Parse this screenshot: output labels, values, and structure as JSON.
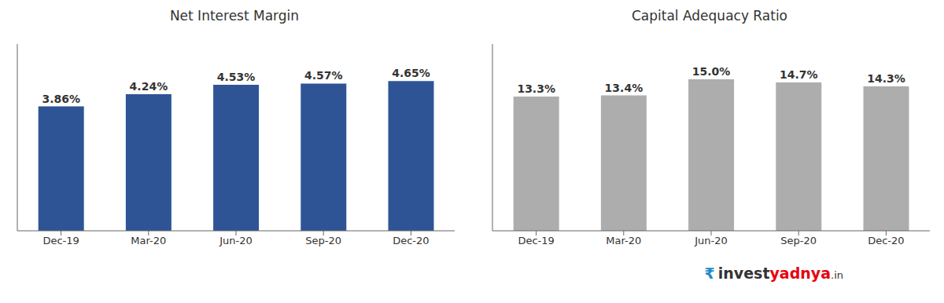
{
  "chart_data": [
    {
      "type": "bar",
      "title": "Net Interest Margin",
      "categories": [
        "Dec-19",
        "Mar-20",
        "Jun-20",
        "Sep-20",
        "Dec-20"
      ],
      "values": [
        3.86,
        4.24,
        4.53,
        4.57,
        4.65
      ],
      "value_labels": [
        "3.86%",
        "4.24%",
        "4.53%",
        "4.57%",
        "4.65%"
      ],
      "color": "#2F5496",
      "ylim": [
        0,
        5.8
      ],
      "yticks": [],
      "data_labels": true,
      "tick_labels": "x",
      "grid": false
    },
    {
      "type": "bar",
      "title": "Capital Adequacy Ratio",
      "categories": [
        "Dec-19",
        "Mar-20",
        "Jun-20",
        "Sep-20",
        "Dec-20"
      ],
      "values": [
        13.3,
        13.4,
        15.0,
        14.7,
        14.3
      ],
      "value_labels": [
        "13.3%",
        "13.4%",
        "15.0%",
        "14.7%",
        "14.3%"
      ],
      "color": "#ADADAD",
      "ylim": [
        0,
        18.5
      ],
      "yticks": [],
      "data_labels": true,
      "tick_labels": "x",
      "grid": false,
      "annotations": [
        {
          "text": "₹",
          "color": "#1E8BC3"
        },
        {
          "text": "invest",
          "color": "#333333"
        },
        {
          "text": "yadnya",
          "color": "#E8000D"
        },
        {
          "text": ".in",
          "color": "#333333"
        }
      ]
    }
  ]
}
